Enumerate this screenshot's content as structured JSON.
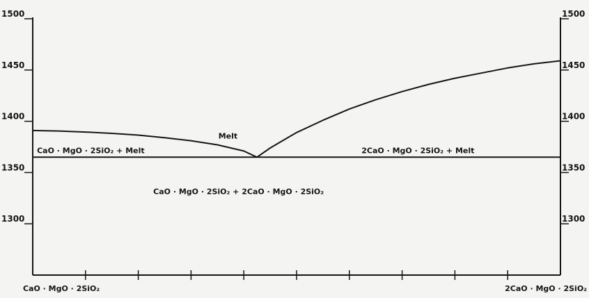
{
  "chart_data": {
    "type": "line",
    "title": "",
    "xlabel": "",
    "ylabel": "",
    "ylim": [
      1250,
      1500
    ],
    "xlim": [
      0,
      100
    ],
    "y_ticks": [
      1300,
      1350,
      1400,
      1450,
      1500
    ],
    "y_tick_labels": [
      "1300",
      "1350",
      "1400",
      "1450",
      "1500"
    ],
    "x_minor_ticks": [
      10,
      20,
      30,
      40,
      50,
      60,
      70,
      80,
      90
    ],
    "x_end_labels": {
      "left": "CaO · MgO · 2SiO₂",
      "right": "2CaO · MgO · 2SiO₂"
    },
    "series": [
      {
        "x": [
          0,
          5,
          10,
          15,
          20,
          25,
          30,
          35,
          40,
          42.5
        ],
        "y": [
          1391,
          1390.5,
          1389.5,
          1388.2,
          1386.5,
          1384,
          1381,
          1377,
          1371,
          1365
        ]
      },
      {
        "x": [
          42.5,
          45,
          50,
          55,
          60,
          65,
          70,
          75,
          80,
          85,
          90,
          95,
          100
        ],
        "y": [
          1365,
          1374,
          1389,
          1401,
          1412,
          1421,
          1429,
          1436,
          1442,
          1447,
          1452,
          1456,
          1459
        ]
      },
      {
        "x": [
          0,
          100
        ],
        "y": [
          1365,
          1365
        ]
      }
    ],
    "annotations": [
      {
        "text": "Melt",
        "x": 37,
        "y": 1383
      },
      {
        "text": "CaO · MgO · 2SiO₂ + Melt",
        "x": 11,
        "y": 1369
      },
      {
        "text": "2CaO · MgO · 2SiO₂ + Melt",
        "x": 73,
        "y": 1369
      },
      {
        "text": "CaO · MgO · 2SiO₂ + 2CaO · MgO · 2SiO₂",
        "x": 39,
        "y": 1329
      }
    ],
    "grid": false,
    "line_color": "#141414"
  }
}
